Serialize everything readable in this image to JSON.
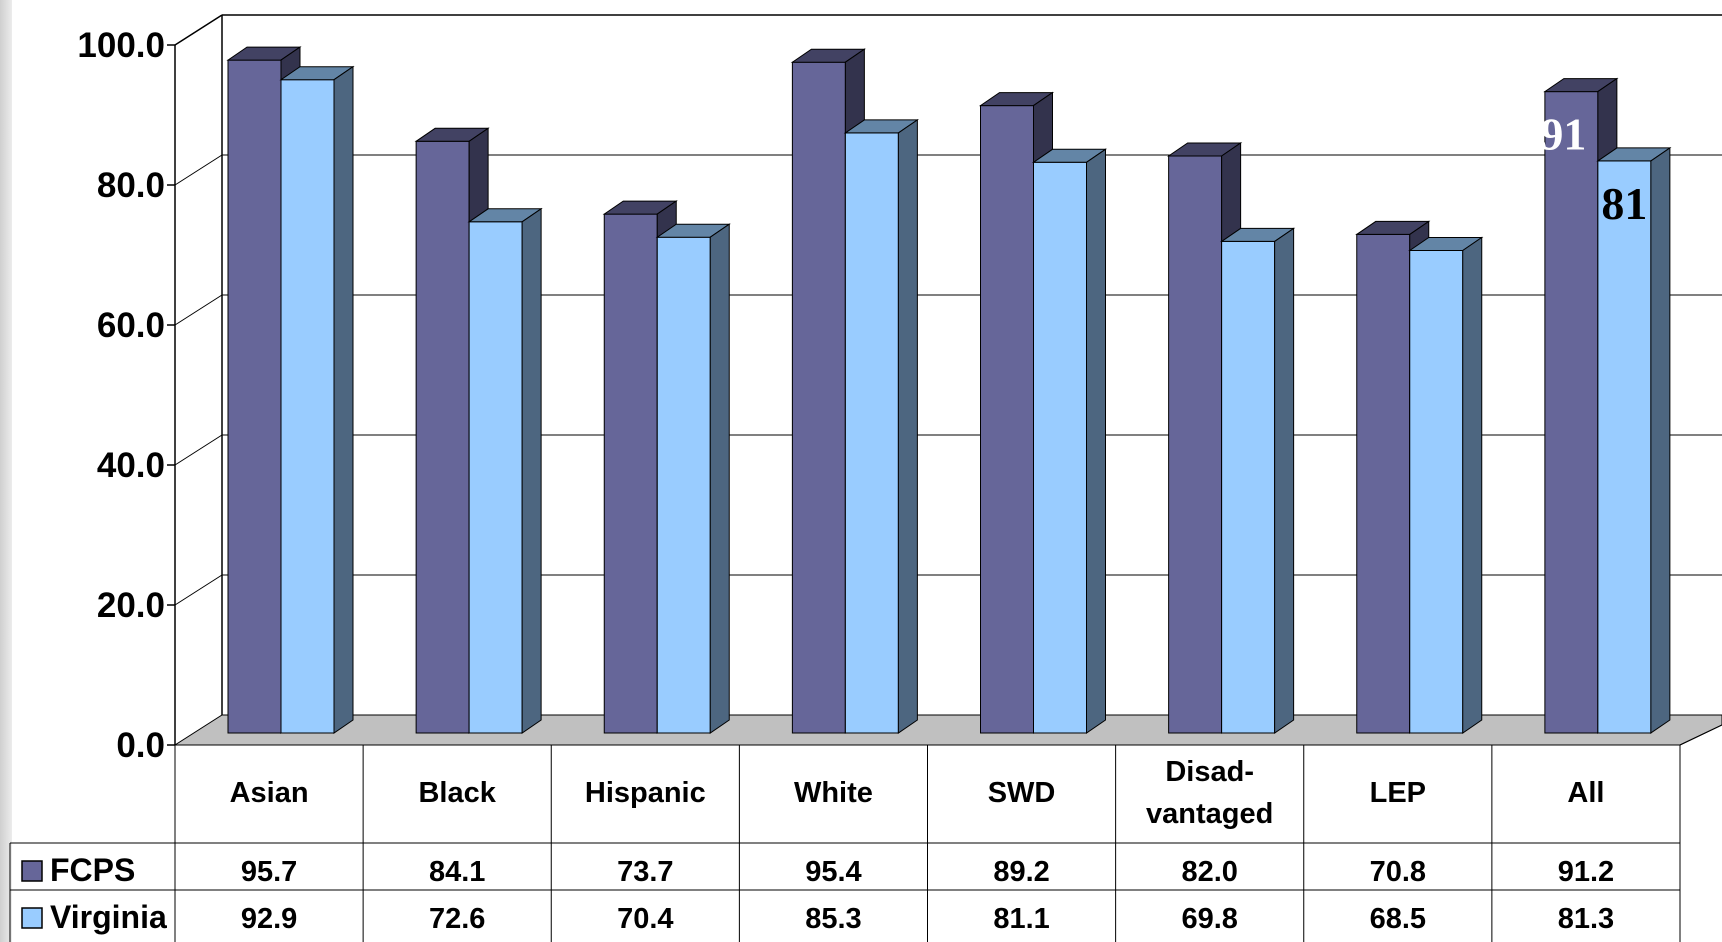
{
  "chart_data": {
    "type": "bar",
    "categories": [
      "Asian",
      "Black",
      "Hispanic",
      "White",
      "SWD",
      "Disad-\nvantaged",
      "LEP",
      "All"
    ],
    "series": [
      {
        "name": "FCPS",
        "color": "#666699",
        "values": [
          95.7,
          84.1,
          73.7,
          95.4,
          89.2,
          82.0,
          70.8,
          91.2
        ],
        "labels": [
          "95.7",
          "84.1",
          "73.7",
          "95.4",
          "89.2",
          "82.0",
          "70.8",
          "91.2"
        ]
      },
      {
        "name": "Virginia",
        "color": "#99ccff",
        "values": [
          92.9,
          72.6,
          70.4,
          85.3,
          81.1,
          69.8,
          68.5,
          81.3
        ],
        "labels": [
          "92.9",
          "72.6",
          "70.4",
          "85.3",
          "81.1",
          "69.8",
          "68.5",
          "81.3"
        ]
      }
    ],
    "ylim": [
      0,
      100
    ],
    "yticks": [
      "0.0",
      "20.0",
      "40.0",
      "60.0",
      "80.0",
      "100.0"
    ],
    "grid": true,
    "legend": "data-table",
    "annotations": [
      {
        "text": "91",
        "series": "FCPS",
        "category": "All",
        "color": "#ffffff"
      },
      {
        "text": "81",
        "series": "Virginia",
        "category": "All",
        "color": "#000000"
      }
    ]
  }
}
